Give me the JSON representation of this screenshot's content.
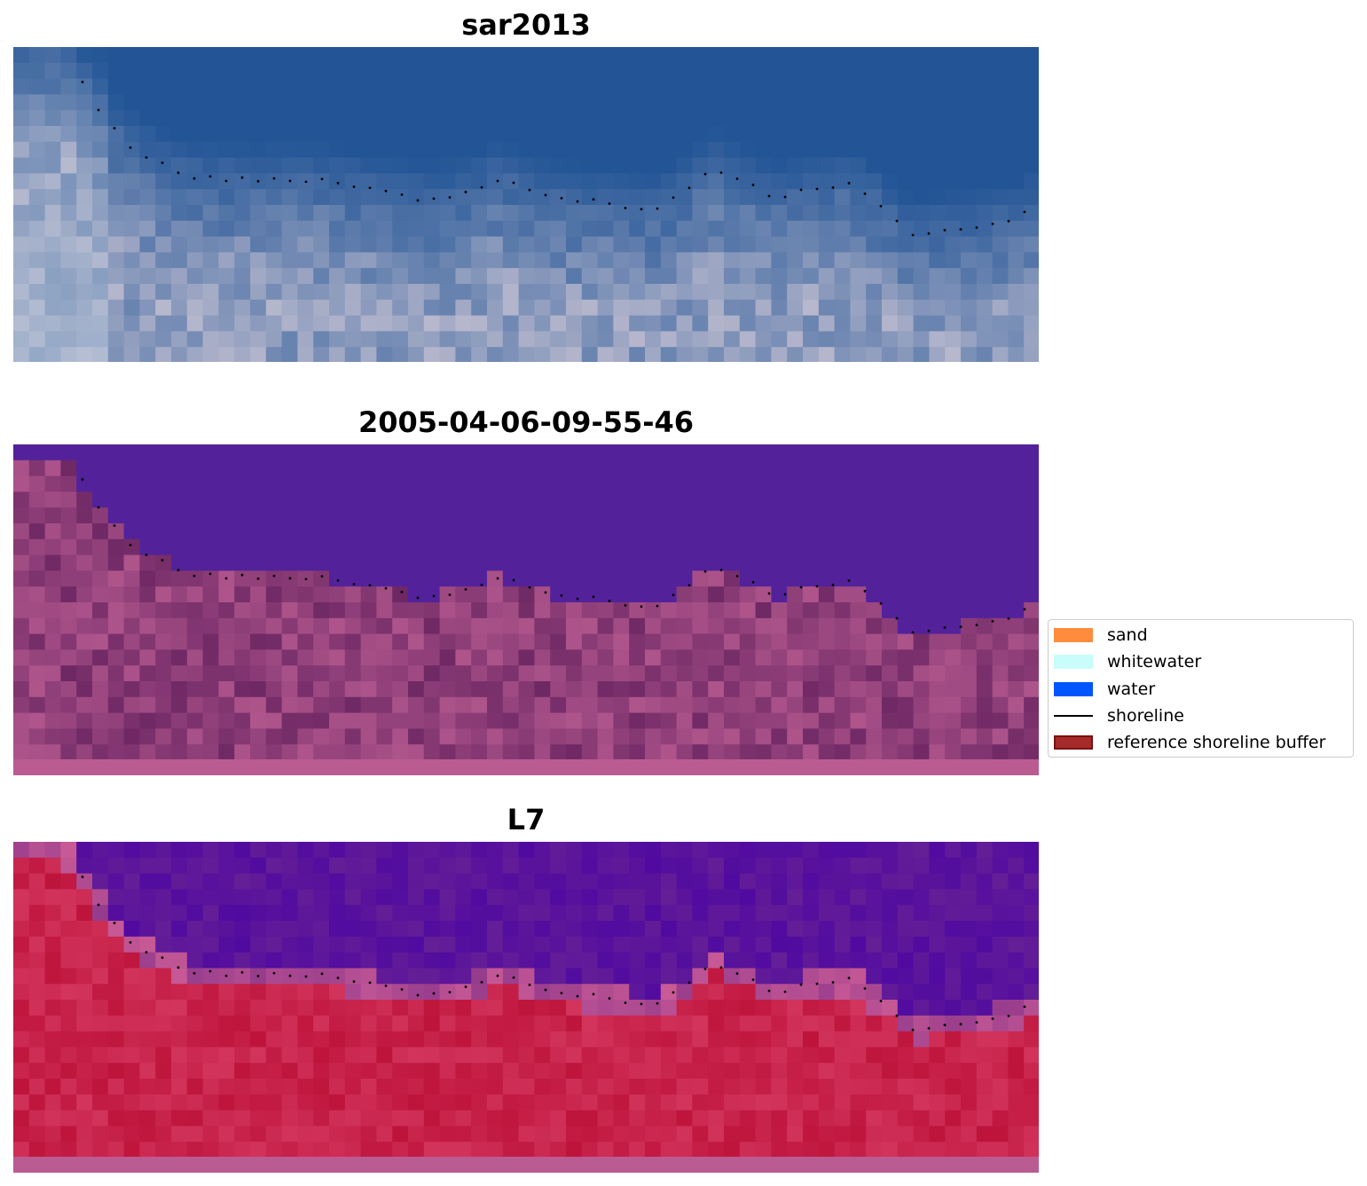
{
  "panels": [
    {
      "title": "sar2013",
      "scheme": "rgb"
    },
    {
      "title": "2005-04-06-09-55-46",
      "scheme": "classified"
    },
    {
      "title": "L7",
      "scheme": "index"
    }
  ],
  "legend": {
    "items": [
      {
        "label": "sand",
        "kind": "patch",
        "color": "#ff8c3c"
      },
      {
        "label": "whitewater",
        "kind": "patch",
        "color": "#c8fdfb"
      },
      {
        "label": "water",
        "kind": "patch",
        "color": "#0055ff"
      },
      {
        "label": "shoreline",
        "kind": "line",
        "color": "#000000"
      },
      {
        "label": "reference shoreline buffer",
        "kind": "patch",
        "color": "#a52a2a",
        "edge": "#7a1010"
      }
    ]
  },
  "colors": {
    "classified_water": "#53229a",
    "index_water": "#5a0fa0",
    "index_land": "#c41a4c",
    "bottom_strip": "#ba5c92"
  }
}
